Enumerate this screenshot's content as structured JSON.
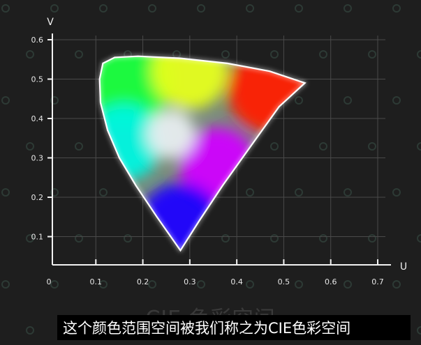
{
  "chart_data": {
    "type": "scatter",
    "title": "CIE 色彩空间",
    "xlabel": "U",
    "ylabel": "V",
    "xlim": [
      0,
      0.7
    ],
    "ylim": [
      0,
      0.6
    ],
    "x_ticks": [
      "0",
      "0.1",
      "0.2",
      "0.3",
      "0.4",
      "0.5",
      "0.6",
      "0.7"
    ],
    "y_ticks": [
      "0.1",
      "0.2",
      "0.3",
      "0.4",
      "0.5",
      "0.6"
    ],
    "grid": true,
    "gamut_boundary": [
      [
        0.28,
        0.065
      ],
      [
        0.32,
        0.14
      ],
      [
        0.37,
        0.23
      ],
      [
        0.43,
        0.33
      ],
      [
        0.49,
        0.43
      ],
      [
        0.545,
        0.49
      ],
      [
        0.47,
        0.52
      ],
      [
        0.38,
        0.54
      ],
      [
        0.28,
        0.553
      ],
      [
        0.19,
        0.558
      ],
      [
        0.14,
        0.555
      ],
      [
        0.115,
        0.54
      ],
      [
        0.108,
        0.5
      ],
      [
        0.11,
        0.44
      ],
      [
        0.125,
        0.37
      ],
      [
        0.15,
        0.3
      ],
      [
        0.185,
        0.23
      ],
      [
        0.23,
        0.15
      ],
      [
        0.28,
        0.065
      ]
    ],
    "gamut_colors": {
      "red": "#ff1a00",
      "green": "#19ff3c",
      "blue": "#1a00ff",
      "yellow": "#e6ff1a",
      "cyan": "#00f5e0",
      "magenta": "#d000ff"
    }
  },
  "caption": {
    "subtitle": "这个颜色范围空间被我们称之为CIE色彩空间"
  }
}
